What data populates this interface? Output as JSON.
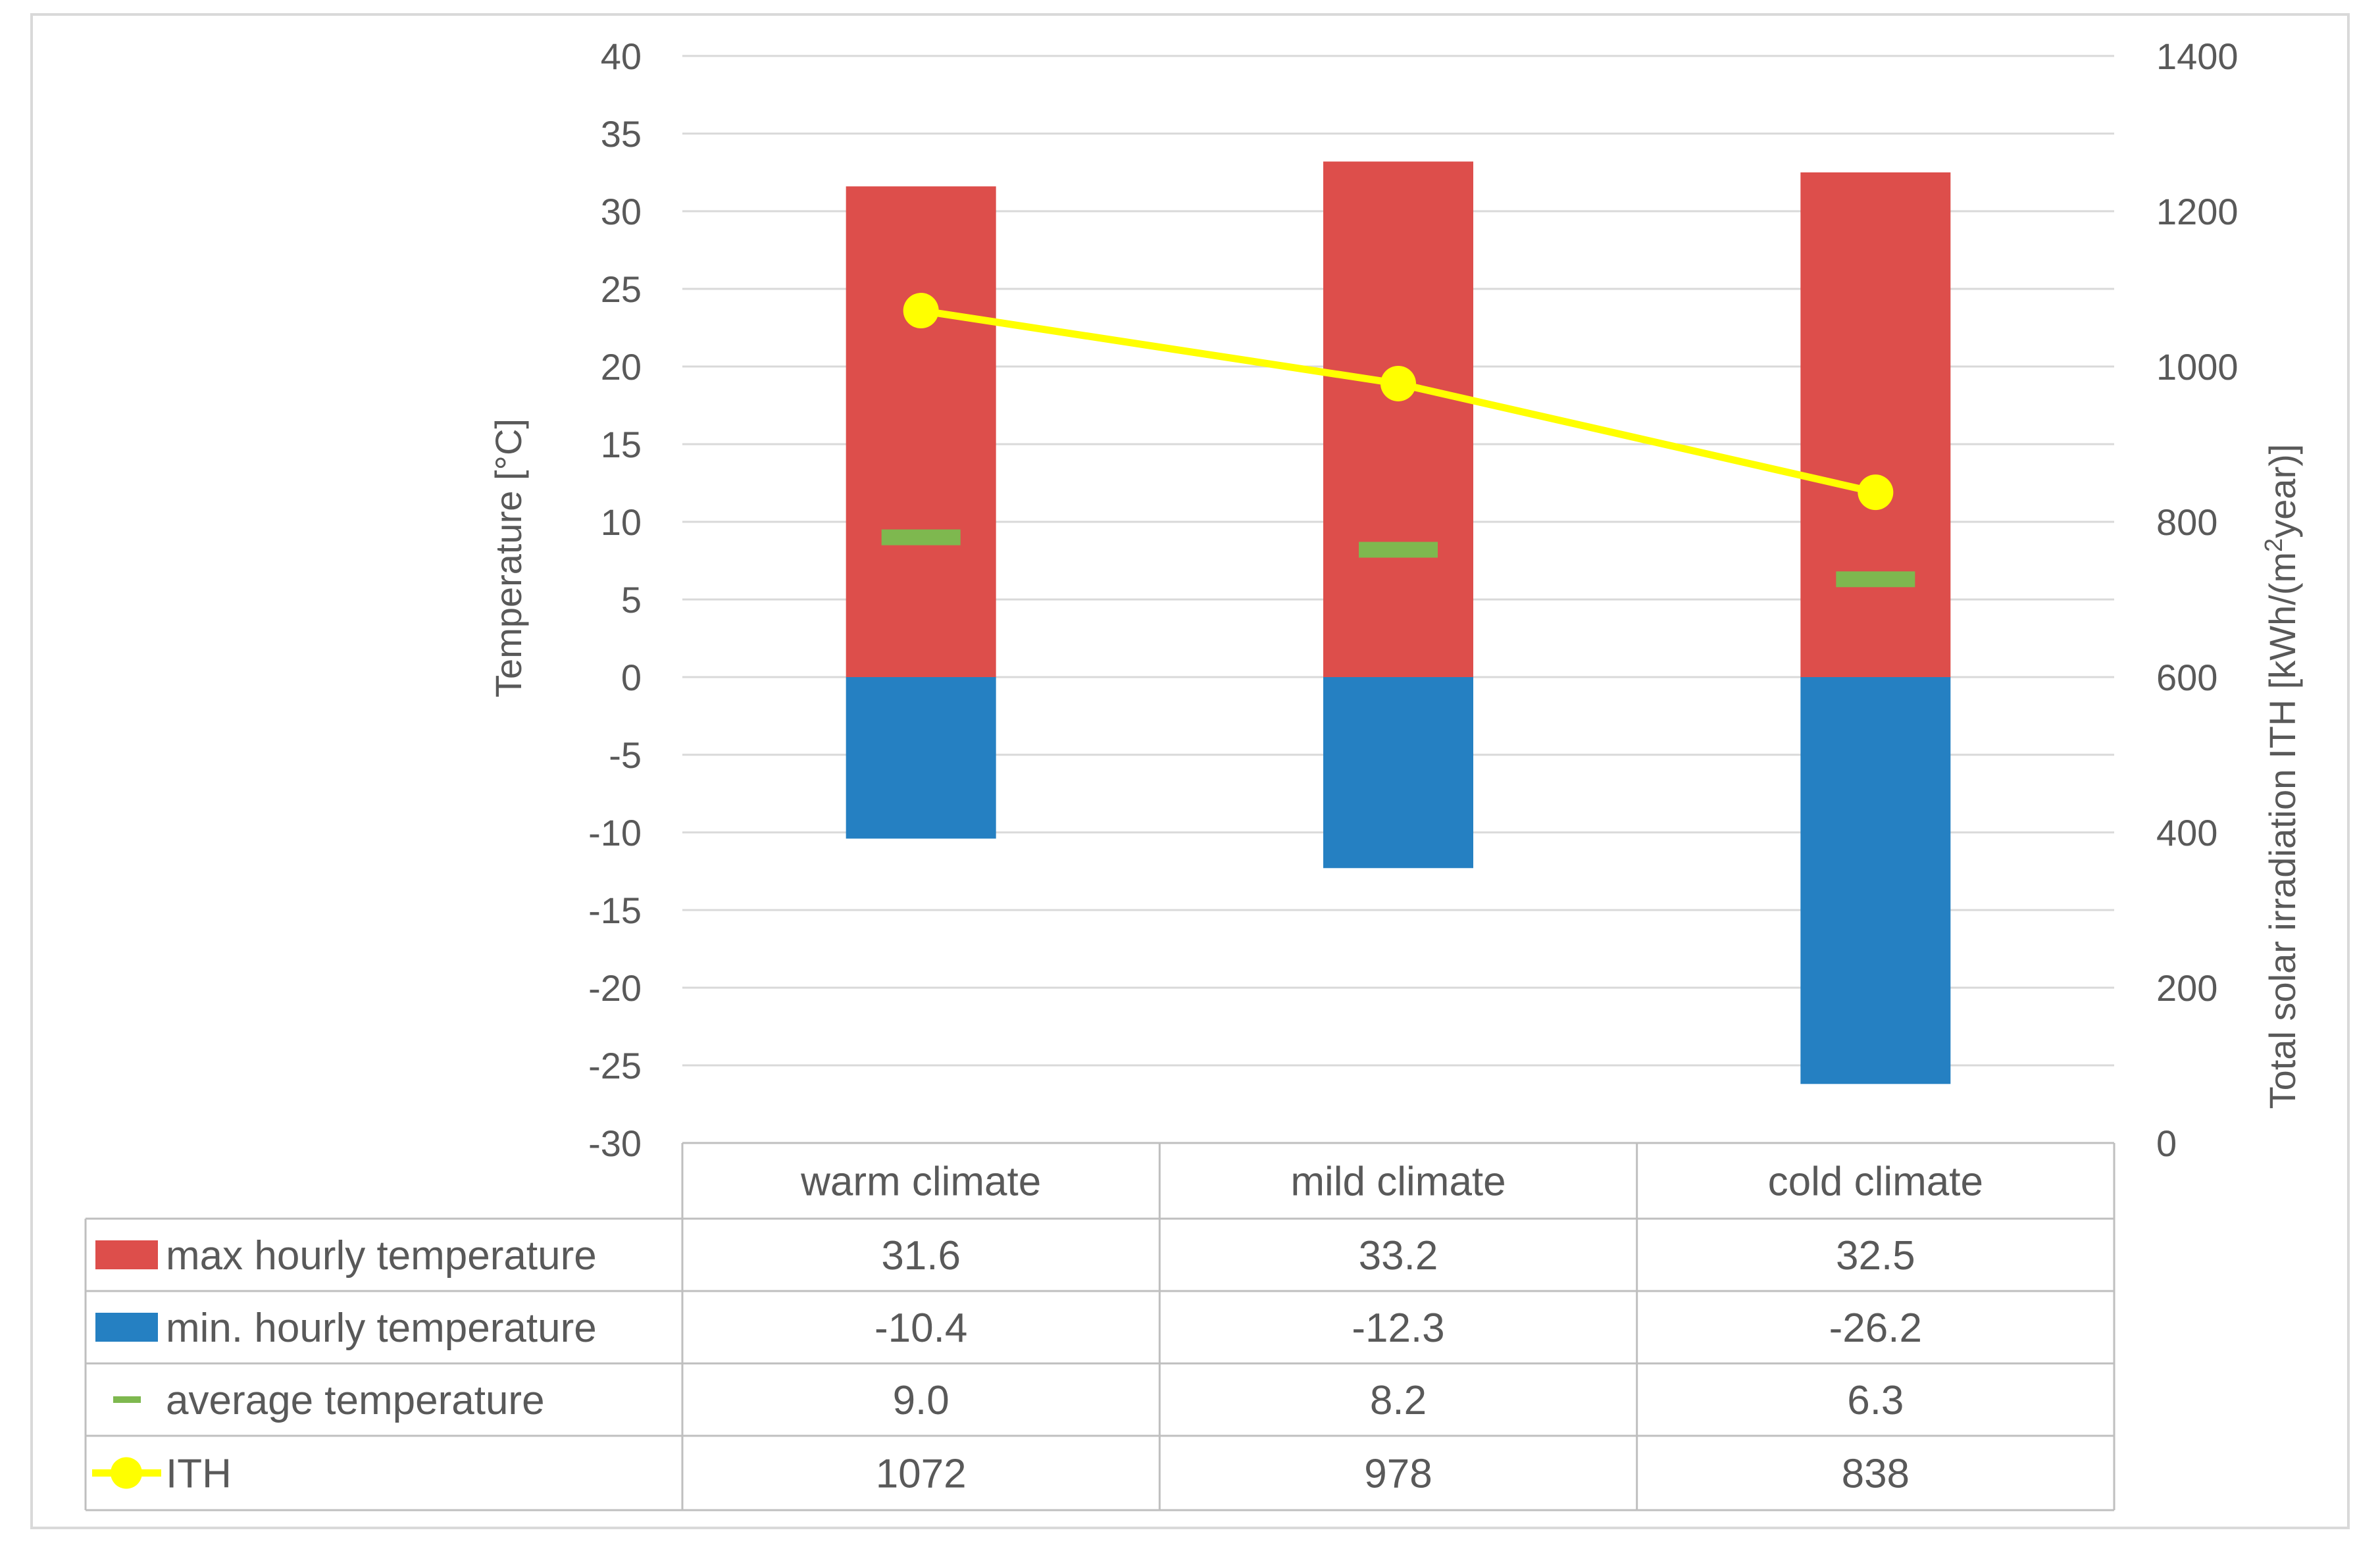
{
  "chart_data": {
    "type": "bar",
    "categories": [
      "warm climate",
      "mild climate",
      "cold climate"
    ],
    "series": [
      {
        "name": "max hourly temperature",
        "kind": "bar",
        "axis": "left",
        "color": "#DD4E4B",
        "values": [
          31.6,
          33.2,
          32.5
        ],
        "value_labels": [
          "31.6",
          "33.2",
          "32.5"
        ]
      },
      {
        "name": "min. hourly temperature",
        "kind": "bar",
        "axis": "left",
        "color": "#2580C2",
        "values": [
          -10.4,
          -12.3,
          -26.2
        ],
        "value_labels": [
          "-10.4",
          "-12.3",
          "-26.2"
        ]
      },
      {
        "name": "average temperature",
        "kind": "marker",
        "axis": "left",
        "color": "#7EB84F",
        "values": [
          9.0,
          8.2,
          6.3
        ],
        "value_labels": [
          "9.0",
          "8.2",
          "6.3"
        ]
      },
      {
        "name": "ITH",
        "kind": "line",
        "axis": "right",
        "color": "#FFFF00",
        "values": [
          1072,
          978,
          838
        ],
        "value_labels": [
          "1072",
          "978",
          "838"
        ]
      }
    ],
    "ylabel": "Temperature [°C]",
    "y2label_main": "Total solar irradiation ITH [kWh/(m",
    "y2label_sup": "2",
    "y2label_end": "year)]",
    "ylim": [
      -30,
      40
    ],
    "y2lim": [
      0,
      1400
    ],
    "yticks": [
      "40",
      "35",
      "30",
      "25",
      "20",
      "15",
      "10",
      "5",
      "0",
      "-5",
      "-10",
      "-15",
      "-20",
      "-25",
      "-30"
    ],
    "y2ticks": [
      "1400",
      "1200",
      "1000",
      "800",
      "600",
      "400",
      "200",
      "0"
    ],
    "grid": true,
    "legend": "data table below chart"
  }
}
